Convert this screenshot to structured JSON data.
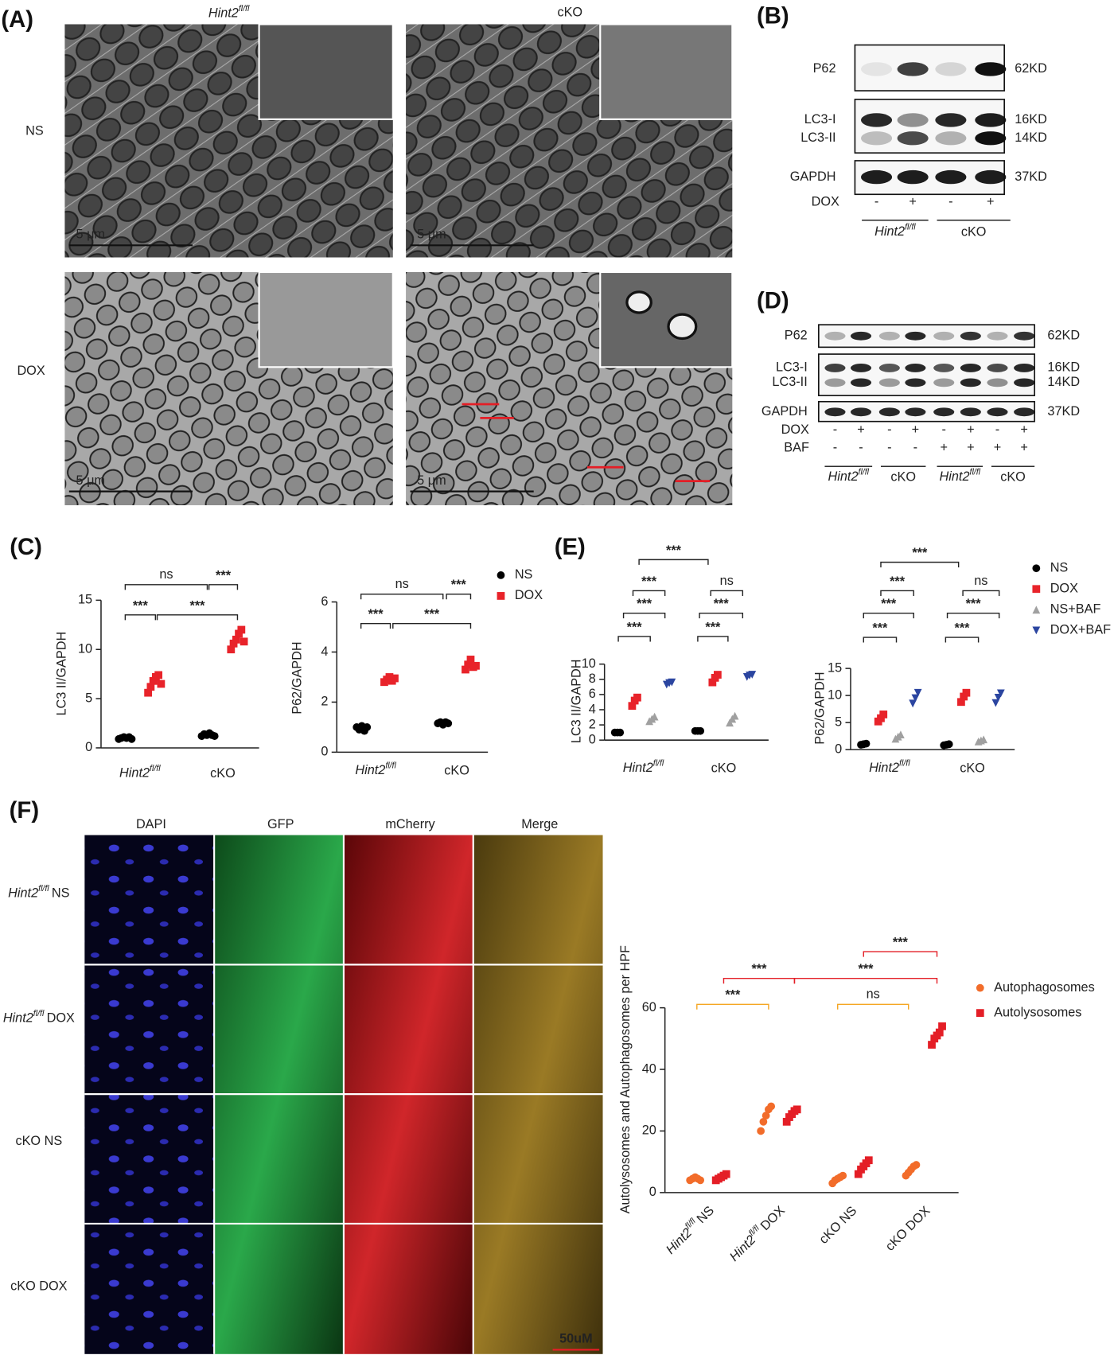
{
  "figure": {
    "panel_a": {
      "label": "(A)",
      "columns": [
        {
          "name": "Hint2",
          "sup": "fl/fl"
        },
        "cKO"
      ],
      "rows": [
        "NS",
        "DOX"
      ],
      "scale_bar": "5 μm"
    },
    "panel_b": {
      "label": "(B)",
      "bands": [
        "P62",
        "LC3-I",
        "LC3-II",
        "GAPDH"
      ],
      "sizes": [
        "62KD",
        "16KD",
        "14KD",
        "37KD"
      ],
      "treatments": [
        {
          "name": "DOX",
          "signs": [
            "-",
            "+",
            "-",
            "+"
          ]
        }
      ],
      "groups": [
        {
          "name": "Hint2",
          "sup": "fl/fl"
        },
        "cKO"
      ]
    },
    "panel_c": {
      "label": "(C)"
    },
    "panel_d": {
      "label": "(D)",
      "bands": [
        "P62",
        "LC3-I",
        "LC3-II",
        "GAPDH"
      ],
      "sizes": [
        "62KD",
        "16KD",
        "14KD",
        "37KD"
      ],
      "treatments": [
        {
          "name": "DOX",
          "signs": [
            "-",
            "+",
            "-",
            "+",
            "-",
            "+",
            "-",
            "+"
          ]
        },
        {
          "name": "BAF",
          "signs": [
            "-",
            "-",
            "-",
            "-",
            "+",
            "+",
            "+",
            "+"
          ]
        }
      ],
      "groups": [
        {
          "name": "Hint2",
          "sup": "fl/fl"
        },
        "cKO",
        {
          "name": "Hint2",
          "sup": "fl/fl"
        },
        "cKO"
      ]
    },
    "panel_e": {
      "label": "(E)"
    },
    "panel_f": {
      "label": "(F)",
      "columns": [
        "DAPI",
        "GFP",
        "mCherry",
        "Merge"
      ],
      "rows": [
        {
          "name": "Hint2",
          "sup": "fl/fl",
          "tail": "NS"
        },
        {
          "name": "Hint2",
          "sup": "fl/fl",
          "tail": "DOX"
        },
        "cKO NS",
        "cKO DOX"
      ],
      "scale_bar": "50uM"
    }
  },
  "chart_data": [
    {
      "type": "dot",
      "y_label": "LC3 II/GAPDH",
      "categories": [
        {
          "name": "Hint2",
          "sup": "fl/fl"
        },
        "cKO"
      ],
      "ylim": [
        0,
        15
      ],
      "yticks": [
        0,
        5,
        10,
        15
      ],
      "series": [
        {
          "color": "#000000",
          "marker": "circle",
          "values": [
            [
              0.9,
              1.0,
              1.1,
              1.0,
              1.1,
              0.9
            ],
            [
              1.2,
              1.4,
              1.3,
              1.5,
              1.3,
              1.2
            ]
          ]
        },
        {
          "color": "#e8232a",
          "marker": "square",
          "values": [
            [
              5.6,
              6.2,
              6.8,
              7.2,
              7.4,
              6.5
            ],
            [
              10.0,
              10.6,
              11.0,
              11.6,
              12.0,
              10.8
            ]
          ]
        }
      ],
      "significance": [
        "ns",
        "***",
        "***",
        "***"
      ]
    },
    {
      "type": "dot",
      "y_label": "P62/GAPDH",
      "categories": [
        {
          "name": "Hint2",
          "sup": "fl/fl"
        },
        "cKO"
      ],
      "ylim": [
        0,
        6
      ],
      "yticks": [
        0,
        2,
        4,
        6
      ],
      "legend": "right",
      "series": [
        {
          "name": "NS",
          "color": "#000000",
          "marker": "circle",
          "values": [
            [
              1.0,
              0.9,
              1.05,
              0.85,
              1.0
            ],
            [
              1.15,
              1.2,
              1.1,
              1.2,
              1.15
            ]
          ]
        },
        {
          "name": "DOX",
          "color": "#e8232a",
          "marker": "square",
          "values": [
            [
              2.8,
              2.9,
              3.0,
              2.85,
              2.95
            ],
            [
              3.3,
              3.5,
              3.7,
              3.4,
              3.45
            ]
          ]
        }
      ],
      "significance": [
        "ns",
        "***",
        "***",
        "***"
      ]
    },
    {
      "type": "dot",
      "y_label": "LC3 II/GAPDH",
      "categories": [
        {
          "name": "Hint2",
          "sup": "fl/fl"
        },
        "cKO"
      ],
      "ylim": [
        0,
        10
      ],
      "yticks": [
        0,
        2,
        4,
        6,
        8,
        10
      ],
      "series": [
        {
          "color": "#000000",
          "marker": "circle",
          "values": [
            [
              1.0,
              1.0,
              1.0
            ],
            [
              1.2,
              1.2,
              1.2
            ]
          ]
        },
        {
          "color": "#e8232a",
          "marker": "square",
          "values": [
            [
              4.5,
              5.2,
              5.6
            ],
            [
              7.6,
              8.2,
              8.6
            ]
          ]
        },
        {
          "color": "#a0a0a0",
          "marker": "triangle",
          "values": [
            [
              2.5,
              2.8,
              3.1
            ],
            [
              2.3,
              2.8,
              3.2
            ]
          ]
        },
        {
          "color": "#2b45a0",
          "marker": "triangle-down",
          "values": [
            [
              7.3,
              7.5,
              7.6
            ],
            [
              8.3,
              8.5,
              8.6
            ]
          ]
        }
      ],
      "significance": [
        "***",
        "***",
        "ns",
        "***",
        "***",
        "***",
        "***"
      ]
    },
    {
      "type": "dot",
      "y_label": "P62/GAPDH",
      "categories": [
        {
          "name": "Hint2",
          "sup": "fl/fl"
        },
        "cKO"
      ],
      "ylim": [
        0,
        15
      ],
      "yticks": [
        0,
        5,
        10,
        15
      ],
      "legend": "right",
      "series": [
        {
          "name": "NS",
          "color": "#000000",
          "marker": "circle",
          "values": [
            [
              0.9,
              1.0,
              1.1
            ],
            [
              0.8,
              0.9,
              1.0
            ]
          ]
        },
        {
          "name": "DOX",
          "color": "#e8232a",
          "marker": "square",
          "values": [
            [
              5.2,
              5.8,
              6.5
            ],
            [
              8.8,
              9.8,
              10.5
            ]
          ]
        },
        {
          "name": "NS+BAF",
          "color": "#a0a0a0",
          "marker": "triangle",
          "values": [
            [
              2.0,
              2.4,
              2.8
            ],
            [
              1.5,
              1.7,
              1.9
            ]
          ]
        },
        {
          "name": "DOX+BAF",
          "color": "#2b45a0",
          "marker": "triangle-down",
          "values": [
            [
              8.5,
              9.5,
              10.5
            ],
            [
              8.6,
              9.6,
              10.4
            ]
          ]
        }
      ],
      "significance": [
        "***",
        "***",
        "ns",
        "***",
        "***",
        "***",
        "***"
      ]
    },
    {
      "type": "dot",
      "y_label": "Autolysosomes and Autophagosomes per HPF",
      "legend": "right",
      "categories": [
        {
          "name": "Hint2",
          "sup": "fl/fl",
          "tail": "NS"
        },
        {
          "name": "Hint2",
          "sup": "fl/fl",
          "tail": "DOX"
        },
        "cKO NS",
        "cKO DOX"
      ],
      "ylim": [
        0,
        60
      ],
      "yticks": [
        0,
        20,
        40,
        60
      ],
      "series": [
        {
          "name": "Autophagosomes",
          "color": "#f26c2a",
          "marker": "circle",
          "values": [
            [
              4,
              4.5,
              5,
              4.5,
              4
            ],
            [
              20,
              23,
              25,
              27,
              28
            ],
            [
              3,
              4,
              4.5,
              5,
              5.5
            ],
            [
              5.5,
              6.5,
              7.5,
              8.5,
              9
            ]
          ]
        },
        {
          "name": "Autolysosomes",
          "color": "#e41e26",
          "marker": "square",
          "values": [
            [
              4,
              4.5,
              5,
              5.5,
              6
            ],
            [
              23,
              24.5,
              25.5,
              26.5,
              27
            ],
            [
              6,
              7.5,
              8.5,
              9.5,
              10.5
            ],
            [
              48,
              50,
              51,
              52,
              54
            ]
          ]
        }
      ],
      "significance": [
        "***",
        "ns",
        "***",
        "***",
        "***"
      ]
    }
  ]
}
